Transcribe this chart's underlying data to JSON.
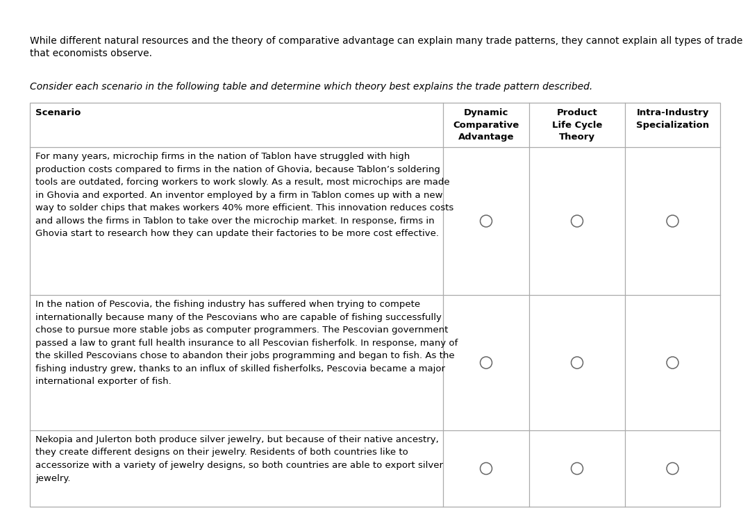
{
  "intro_text_line1": "While different natural resources and the theory of comparative advantage can explain many trade patterns, they cannot explain all types of trade",
  "intro_text_line2": "that economists observe.",
  "instruction_text": "Consider each scenario in the following table and determine which theory best explains the trade pattern described.",
  "col_header_scenario": "Scenario",
  "col_header_1": "Dynamic\nComparative\nAdvantage",
  "col_header_2": "Product\nLife Cycle\nTheory",
  "col_header_3": "Intra-Industry\nSpecialization",
  "scenario1": "For many years, microchip firms in the nation of Tablon have struggled with high\nproduction costs compared to firms in the nation of Ghovia, because Tablon’s soldering\ntools are outdated, forcing workers to work slowly. As a result, most microchips are made\nin Ghovia and exported. An inventor employed by a firm in Tablon comes up with a new\nway to solder chips that makes workers 40% more efficient. This innovation reduces costs\nand allows the firms in Tablon to take over the microchip market. In response, firms in\nGhovia start to research how they can update their factories to be more cost effective.",
  "scenario2": "In the nation of Pescovia, the fishing industry has suffered when trying to compete\ninternationally because many of the Pescovians who are capable of fishing successfully\nchose to pursue more stable jobs as computer programmers. The Pescovian government\npassed a law to grant full health insurance to all Pescovian fisherfolk. In response, many of\nthe skilled Pescovians chose to abandon their jobs programming and began to fish. As the\nfishing industry grew, thanks to an influx of skilled fisherfolks, Pescovia became a major\ninternational exporter of fish.",
  "scenario3": "Nekopia and Julerton both produce silver jewelry, but because of their native ancestry,\nthey create different designs on their jewelry. Residents of both countries like to\naccessorize with a variety of jewelry designs, so both countries are able to export silver\njewelry.",
  "bg_color": "#ffffff",
  "border_color": "#aaaaaa",
  "text_color": "#000000",
  "circle_color": "#666666",
  "intro_fontsize": 10.0,
  "instruction_fontsize": 10.0,
  "scenario_fontsize": 9.5,
  "header_fontsize": 9.5,
  "figwidth": 10.8,
  "figheight": 7.65,
  "dpi": 100
}
